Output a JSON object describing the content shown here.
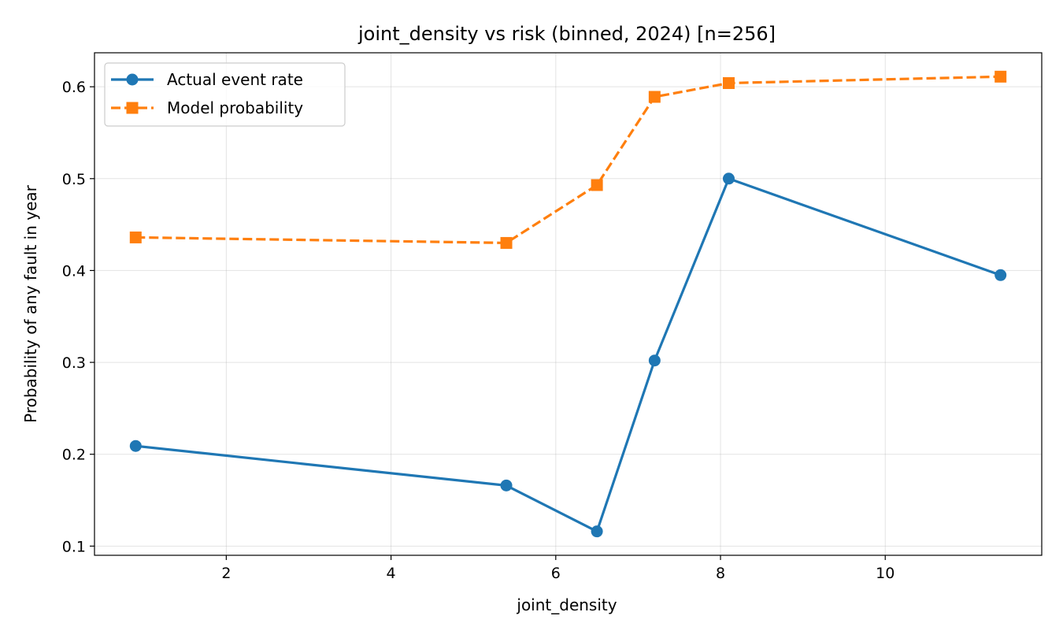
{
  "chart_data": {
    "type": "line",
    "title": "joint_density vs risk (binned, 2024)  [n=256]",
    "xlabel": "joint_density",
    "ylabel": "Probability of any fault in year",
    "xlim": [
      0.4,
      11.9
    ],
    "ylim": [
      0.09,
      0.637
    ],
    "xticks": [
      2,
      4,
      6,
      8,
      10
    ],
    "yticks": [
      0.1,
      0.2,
      0.3,
      0.4,
      0.5,
      0.6
    ],
    "xtick_labels": [
      "2",
      "4",
      "6",
      "8",
      "10"
    ],
    "ytick_labels": [
      "0.1",
      "0.2",
      "0.3",
      "0.4",
      "0.5",
      "0.6"
    ],
    "grid": true,
    "legend_position": "upper-left",
    "series": [
      {
        "name": "Actual event rate",
        "x": [
          0.9,
          5.4,
          6.5,
          7.2,
          8.1,
          11.4
        ],
        "y": [
          0.209,
          0.166,
          0.116,
          0.302,
          0.5,
          0.395
        ],
        "color": "#1f77b4",
        "linestyle": "solid",
        "marker": "circle"
      },
      {
        "name": "Model probability",
        "x": [
          0.9,
          5.4,
          6.5,
          7.2,
          8.1,
          11.4
        ],
        "y": [
          0.436,
          0.43,
          0.493,
          0.589,
          0.604,
          0.611
        ],
        "color": "#ff7f0e",
        "linestyle": "dashed",
        "marker": "square"
      }
    ]
  }
}
